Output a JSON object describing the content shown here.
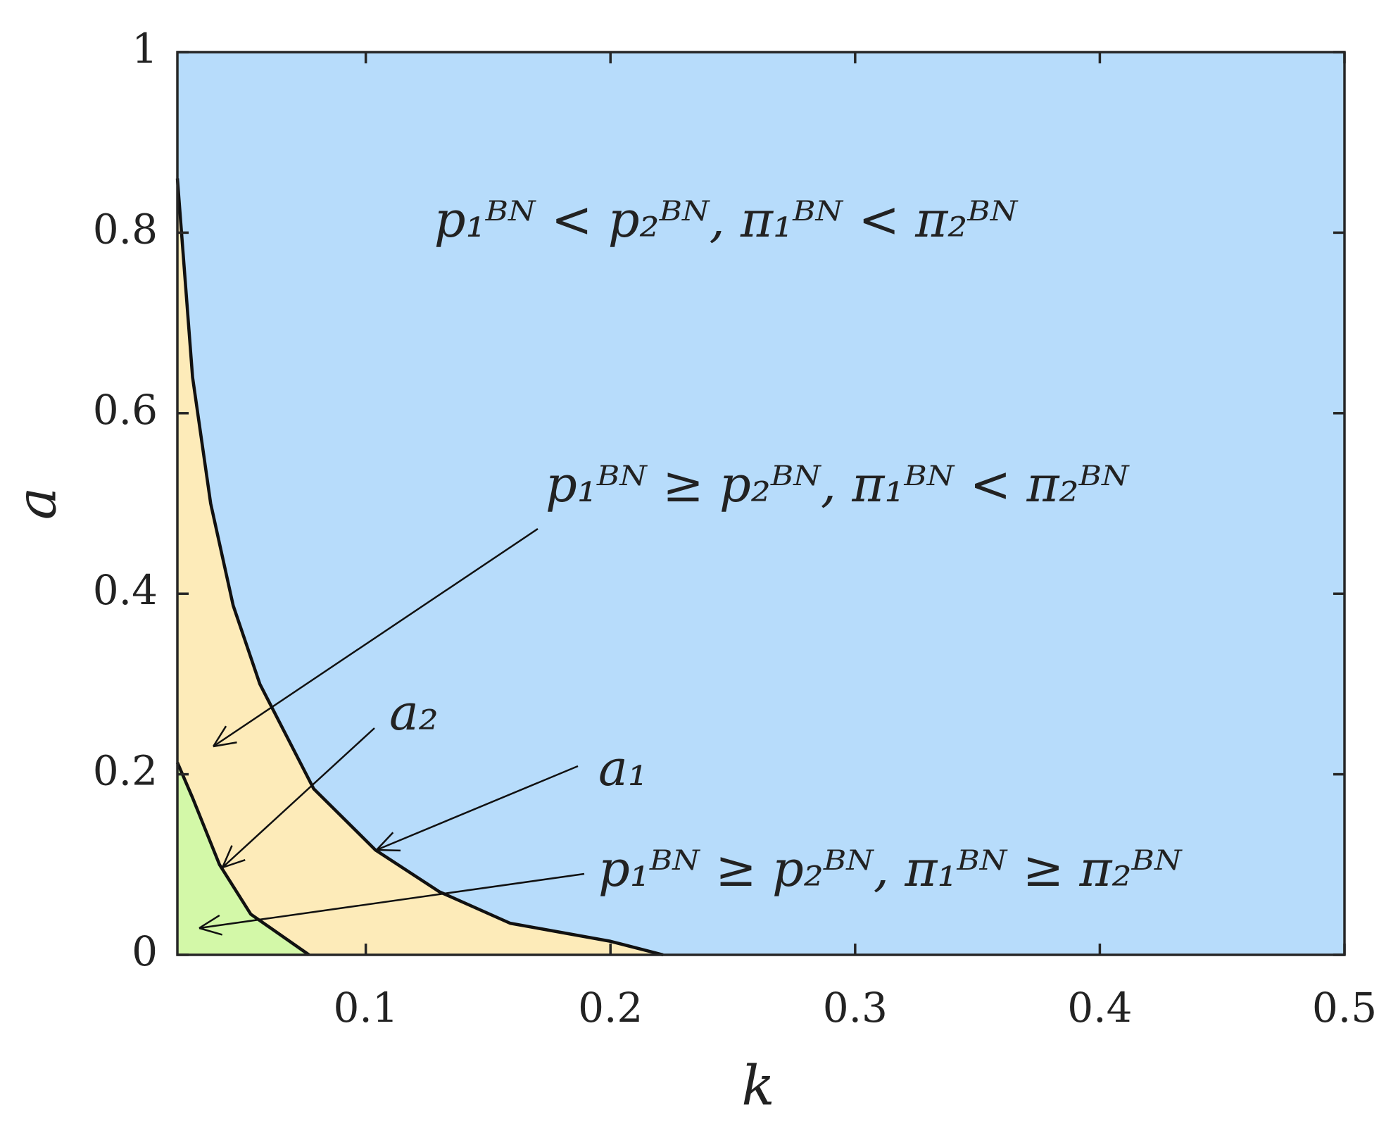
{
  "chart_data": {
    "type": "area",
    "x_label": "k",
    "y_label": "a",
    "xlim": [
      0.023,
      0.5
    ],
    "ylim": [
      0,
      1
    ],
    "xticks": [
      0.1,
      0.2,
      0.3,
      0.4,
      0.5
    ],
    "yticks": [
      0,
      0.2,
      0.4,
      0.6,
      0.8,
      1
    ],
    "background": "#b7dcfb",
    "series": [
      {
        "name": "a₁",
        "color": "#111111",
        "fill": "#fdebb9",
        "x": [
          0.023,
          0.0292,
          0.0366,
          0.0458,
          0.0567,
          0.0787,
          0.104,
          0.13,
          0.159,
          0.2,
          0.2215
        ],
        "values": [
          0.86,
          0.64,
          0.5,
          0.387,
          0.3,
          0.184,
          0.116,
          0.07,
          0.035,
          0.015,
          0
        ]
      },
      {
        "name": "a₂",
        "color": "#111111",
        "fill": "#d3f8a8",
        "x": [
          0.023,
          0.0292,
          0.0402,
          0.053,
          0.0768
        ],
        "values": [
          0.213,
          0.174,
          0.1,
          0.045,
          0
        ]
      }
    ],
    "annotations": [
      "p₁ᴮᴺ < p₂ᴮᴺ, π₁ᴮᴺ < π₂ᴮᴺ",
      "p₁ᴮᴺ ≥ p₂ᴮᴺ, π₁ᴮᴺ < π₂ᴮᴺ",
      "p₁ᴮᴺ ≥ p₂ᴮᴺ, π₁ᴮᴺ ≥ π₂ᴮᴺ"
    ]
  }
}
